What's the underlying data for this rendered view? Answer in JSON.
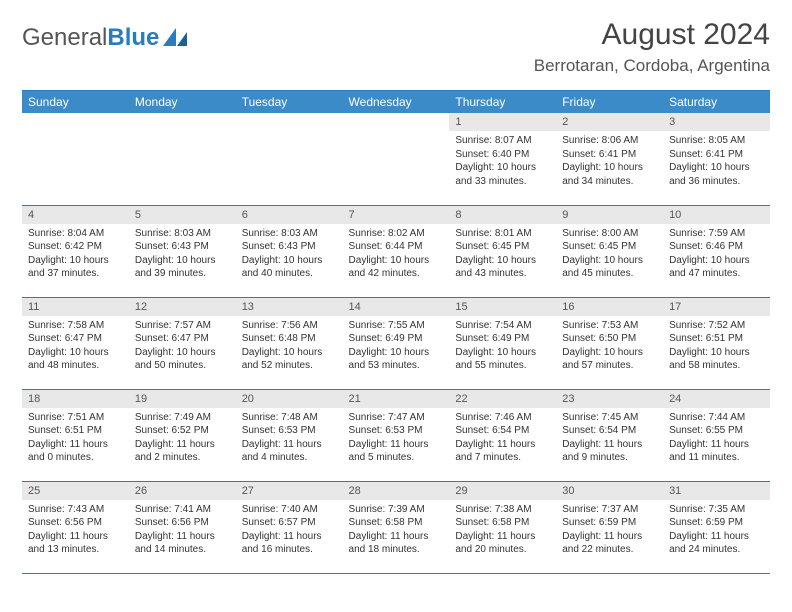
{
  "logo": {
    "text1": "General",
    "text2": "Blue"
  },
  "title": "August 2024",
  "location": "Berrotaran, Cordoba, Argentina",
  "colors": {
    "header_bg": "#3b8bc9",
    "header_text": "#ffffff",
    "daynum_bg": "#e8e8e8",
    "rule": "#2b7bbf",
    "logo_blue": "#2b7bbf",
    "text": "#333333"
  },
  "dayNames": [
    "Sunday",
    "Monday",
    "Tuesday",
    "Wednesday",
    "Thursday",
    "Friday",
    "Saturday"
  ],
  "weeks": [
    [
      {
        "n": "",
        "sr": "",
        "ss": "",
        "dl": ""
      },
      {
        "n": "",
        "sr": "",
        "ss": "",
        "dl": ""
      },
      {
        "n": "",
        "sr": "",
        "ss": "",
        "dl": ""
      },
      {
        "n": "",
        "sr": "",
        "ss": "",
        "dl": ""
      },
      {
        "n": "1",
        "sr": "Sunrise: 8:07 AM",
        "ss": "Sunset: 6:40 PM",
        "dl": "Daylight: 10 hours and 33 minutes."
      },
      {
        "n": "2",
        "sr": "Sunrise: 8:06 AM",
        "ss": "Sunset: 6:41 PM",
        "dl": "Daylight: 10 hours and 34 minutes."
      },
      {
        "n": "3",
        "sr": "Sunrise: 8:05 AM",
        "ss": "Sunset: 6:41 PM",
        "dl": "Daylight: 10 hours and 36 minutes."
      }
    ],
    [
      {
        "n": "4",
        "sr": "Sunrise: 8:04 AM",
        "ss": "Sunset: 6:42 PM",
        "dl": "Daylight: 10 hours and 37 minutes."
      },
      {
        "n": "5",
        "sr": "Sunrise: 8:03 AM",
        "ss": "Sunset: 6:43 PM",
        "dl": "Daylight: 10 hours and 39 minutes."
      },
      {
        "n": "6",
        "sr": "Sunrise: 8:03 AM",
        "ss": "Sunset: 6:43 PM",
        "dl": "Daylight: 10 hours and 40 minutes."
      },
      {
        "n": "7",
        "sr": "Sunrise: 8:02 AM",
        "ss": "Sunset: 6:44 PM",
        "dl": "Daylight: 10 hours and 42 minutes."
      },
      {
        "n": "8",
        "sr": "Sunrise: 8:01 AM",
        "ss": "Sunset: 6:45 PM",
        "dl": "Daylight: 10 hours and 43 minutes."
      },
      {
        "n": "9",
        "sr": "Sunrise: 8:00 AM",
        "ss": "Sunset: 6:45 PM",
        "dl": "Daylight: 10 hours and 45 minutes."
      },
      {
        "n": "10",
        "sr": "Sunrise: 7:59 AM",
        "ss": "Sunset: 6:46 PM",
        "dl": "Daylight: 10 hours and 47 minutes."
      }
    ],
    [
      {
        "n": "11",
        "sr": "Sunrise: 7:58 AM",
        "ss": "Sunset: 6:47 PM",
        "dl": "Daylight: 10 hours and 48 minutes."
      },
      {
        "n": "12",
        "sr": "Sunrise: 7:57 AM",
        "ss": "Sunset: 6:47 PM",
        "dl": "Daylight: 10 hours and 50 minutes."
      },
      {
        "n": "13",
        "sr": "Sunrise: 7:56 AM",
        "ss": "Sunset: 6:48 PM",
        "dl": "Daylight: 10 hours and 52 minutes."
      },
      {
        "n": "14",
        "sr": "Sunrise: 7:55 AM",
        "ss": "Sunset: 6:49 PM",
        "dl": "Daylight: 10 hours and 53 minutes."
      },
      {
        "n": "15",
        "sr": "Sunrise: 7:54 AM",
        "ss": "Sunset: 6:49 PM",
        "dl": "Daylight: 10 hours and 55 minutes."
      },
      {
        "n": "16",
        "sr": "Sunrise: 7:53 AM",
        "ss": "Sunset: 6:50 PM",
        "dl": "Daylight: 10 hours and 57 minutes."
      },
      {
        "n": "17",
        "sr": "Sunrise: 7:52 AM",
        "ss": "Sunset: 6:51 PM",
        "dl": "Daylight: 10 hours and 58 minutes."
      }
    ],
    [
      {
        "n": "18",
        "sr": "Sunrise: 7:51 AM",
        "ss": "Sunset: 6:51 PM",
        "dl": "Daylight: 11 hours and 0 minutes."
      },
      {
        "n": "19",
        "sr": "Sunrise: 7:49 AM",
        "ss": "Sunset: 6:52 PM",
        "dl": "Daylight: 11 hours and 2 minutes."
      },
      {
        "n": "20",
        "sr": "Sunrise: 7:48 AM",
        "ss": "Sunset: 6:53 PM",
        "dl": "Daylight: 11 hours and 4 minutes."
      },
      {
        "n": "21",
        "sr": "Sunrise: 7:47 AM",
        "ss": "Sunset: 6:53 PM",
        "dl": "Daylight: 11 hours and 5 minutes."
      },
      {
        "n": "22",
        "sr": "Sunrise: 7:46 AM",
        "ss": "Sunset: 6:54 PM",
        "dl": "Daylight: 11 hours and 7 minutes."
      },
      {
        "n": "23",
        "sr": "Sunrise: 7:45 AM",
        "ss": "Sunset: 6:54 PM",
        "dl": "Daylight: 11 hours and 9 minutes."
      },
      {
        "n": "24",
        "sr": "Sunrise: 7:44 AM",
        "ss": "Sunset: 6:55 PM",
        "dl": "Daylight: 11 hours and 11 minutes."
      }
    ],
    [
      {
        "n": "25",
        "sr": "Sunrise: 7:43 AM",
        "ss": "Sunset: 6:56 PM",
        "dl": "Daylight: 11 hours and 13 minutes."
      },
      {
        "n": "26",
        "sr": "Sunrise: 7:41 AM",
        "ss": "Sunset: 6:56 PM",
        "dl": "Daylight: 11 hours and 14 minutes."
      },
      {
        "n": "27",
        "sr": "Sunrise: 7:40 AM",
        "ss": "Sunset: 6:57 PM",
        "dl": "Daylight: 11 hours and 16 minutes."
      },
      {
        "n": "28",
        "sr": "Sunrise: 7:39 AM",
        "ss": "Sunset: 6:58 PM",
        "dl": "Daylight: 11 hours and 18 minutes."
      },
      {
        "n": "29",
        "sr": "Sunrise: 7:38 AM",
        "ss": "Sunset: 6:58 PM",
        "dl": "Daylight: 11 hours and 20 minutes."
      },
      {
        "n": "30",
        "sr": "Sunrise: 7:37 AM",
        "ss": "Sunset: 6:59 PM",
        "dl": "Daylight: 11 hours and 22 minutes."
      },
      {
        "n": "31",
        "sr": "Sunrise: 7:35 AM",
        "ss": "Sunset: 6:59 PM",
        "dl": "Daylight: 11 hours and 24 minutes."
      }
    ]
  ]
}
